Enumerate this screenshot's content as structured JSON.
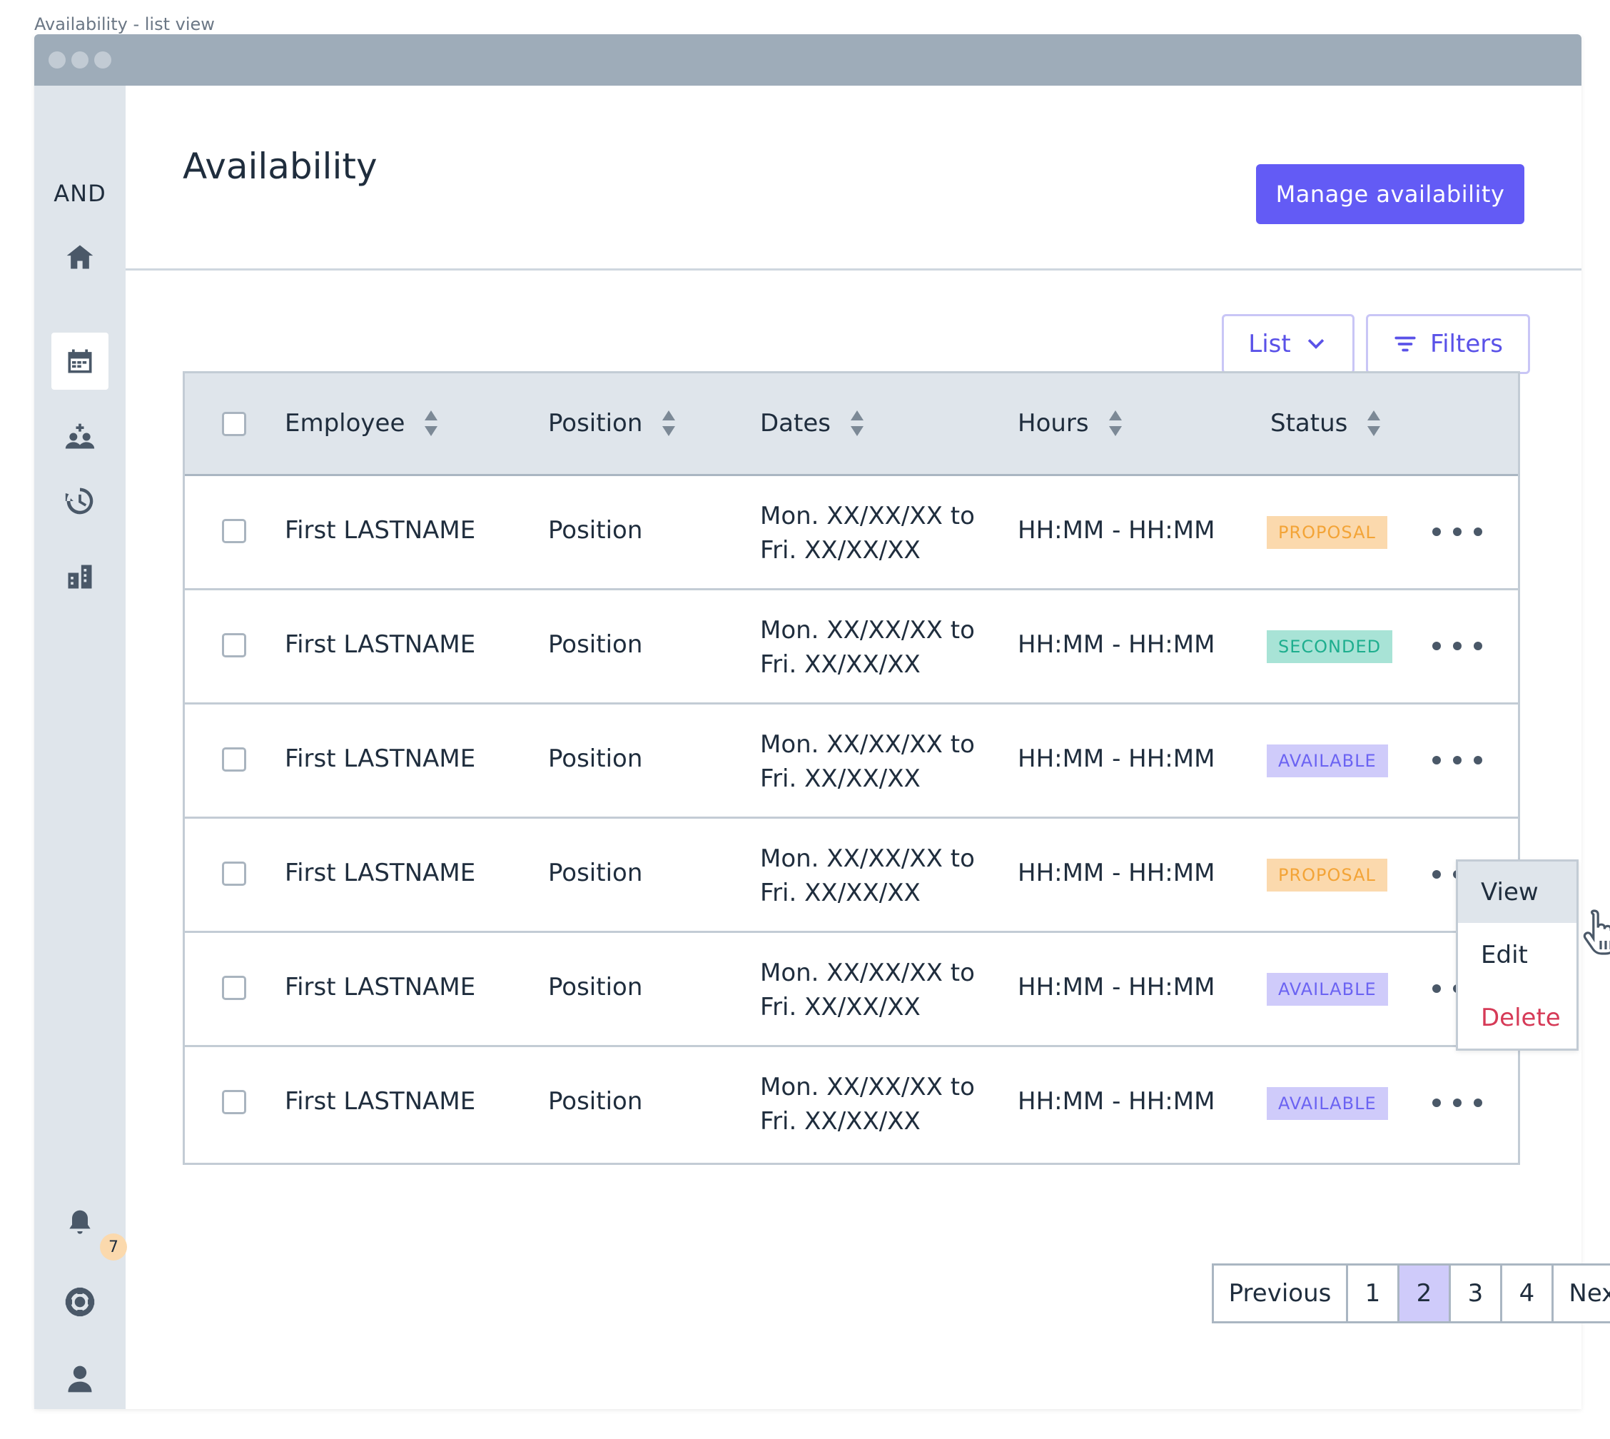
{
  "caption": "Availability - list view",
  "app": {
    "logo": "AND",
    "nav": [
      {
        "name": "home-icon"
      },
      {
        "name": "calendar-icon",
        "active": true
      },
      {
        "name": "add-team-icon"
      },
      {
        "name": "history-icon"
      },
      {
        "name": "building-icon"
      }
    ],
    "bottom_nav": [
      {
        "name": "notifications-icon",
        "badge": "7"
      },
      {
        "name": "help-lifebuoy-icon"
      },
      {
        "name": "user-icon"
      }
    ]
  },
  "header": {
    "title": "Availability",
    "primary_action": "Manage availability"
  },
  "toolbar": {
    "view_select": "List",
    "filters": "Filters"
  },
  "table": {
    "columns": [
      "Employee",
      "Position",
      "Dates",
      "Hours",
      "Status"
    ],
    "rows": [
      {
        "employee": "First LASTNAME",
        "position": "Position",
        "date_from": "Mon. XX/XX/XX to",
        "date_to": "Fri. XX/XX/XX",
        "hours": "HH:MM - HH:MM",
        "status": "PROPOSAL"
      },
      {
        "employee": "First LASTNAME",
        "position": "Position",
        "date_from": "Mon. XX/XX/XX to",
        "date_to": "Fri. XX/XX/XX",
        "hours": "HH:MM - HH:MM",
        "status": "SECONDED"
      },
      {
        "employee": "First LASTNAME",
        "position": "Position",
        "date_from": "Mon. XX/XX/XX to",
        "date_to": "Fri. XX/XX/XX",
        "hours": "HH:MM - HH:MM",
        "status": "AVAILABLE"
      },
      {
        "employee": "First LASTNAME",
        "position": "Position",
        "date_from": "Mon. XX/XX/XX to",
        "date_to": "Fri. XX/XX/XX",
        "hours": "HH:MM - HH:MM",
        "status": "PROPOSAL"
      },
      {
        "employee": "First LASTNAME",
        "position": "Position",
        "date_from": "Mon. XX/XX/XX to",
        "date_to": "Fri. XX/XX/XX",
        "hours": "HH:MM - HH:MM",
        "status": "AVAILABLE"
      },
      {
        "employee": "First LASTNAME",
        "position": "Position",
        "date_from": "Mon. XX/XX/XX to",
        "date_to": "Fri. XX/XX/XX",
        "hours": "HH:MM - HH:MM",
        "status": "AVAILABLE"
      }
    ]
  },
  "row_menu": {
    "items": [
      "View",
      "Edit",
      "Delete"
    ]
  },
  "pagination": {
    "previous": "Previous",
    "pages": [
      "1",
      "2",
      "3",
      "4"
    ],
    "current": "2",
    "next": "Next"
  },
  "colors": {
    "accent": "#635bf5",
    "sidebar": "#dfe5eb",
    "proposal": "#f3a437",
    "seconded": "#1eae8e",
    "available": "#6b63f2",
    "danger": "#d63a57"
  }
}
